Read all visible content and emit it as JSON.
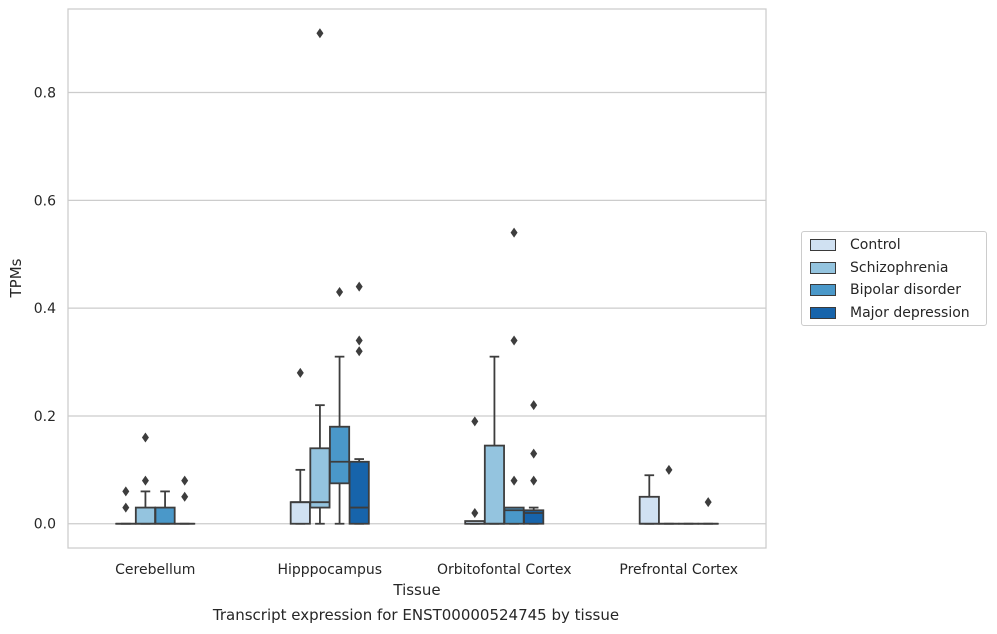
{
  "chart_data": {
    "type": "box",
    "xlabel": "Tissue",
    "ylabel": "TPMs",
    "caption": "Transcript expression for ENST00000524745 by tissue",
    "ylim": [
      -0.045,
      0.955
    ],
    "yticks": [
      0.0,
      0.2,
      0.4,
      0.6,
      0.8
    ],
    "ytick_labels": [
      "0.0",
      "0.2",
      "0.4",
      "0.6",
      "0.8"
    ],
    "grid": "horizontal",
    "legend_position": "right, outside",
    "categories": [
      "Cerebellum",
      "Hipppocampus",
      "Orbitofontal Cortex",
      "Prefrontal Cortex"
    ],
    "series": [
      {
        "name": "Control",
        "color": "#d0e1f2",
        "boxes": [
          {
            "q1": 0,
            "median": 0,
            "q3": 0,
            "whisker_low": 0,
            "whisker_high": 0,
            "outliers": [
              0.03,
              0.06
            ]
          },
          {
            "q1": 0,
            "median": 0.04,
            "q3": 0.04,
            "whisker_low": 0,
            "whisker_high": 0.1,
            "outliers": [
              0.28
            ]
          },
          {
            "q1": 0,
            "median": 0,
            "q3": 0.005,
            "whisker_low": 0,
            "whisker_high": 0.005,
            "outliers": [
              0.02,
              0.19
            ]
          },
          {
            "q1": 0,
            "median": 0,
            "q3": 0.05,
            "whisker_low": 0,
            "whisker_high": 0.09,
            "outliers": []
          }
        ]
      },
      {
        "name": "Schizophrenia",
        "color": "#94c4df",
        "boxes": [
          {
            "q1": 0,
            "median": 0,
            "q3": 0.03,
            "whisker_low": 0,
            "whisker_high": 0.06,
            "outliers": [
              0.08,
              0.16
            ]
          },
          {
            "q1": 0.03,
            "median": 0.04,
            "q3": 0.14,
            "whisker_low": 0,
            "whisker_high": 0.22,
            "outliers": [
              0.91
            ]
          },
          {
            "q1": 0,
            "median": 0,
            "q3": 0.145,
            "whisker_low": 0,
            "whisker_high": 0.31,
            "outliers": []
          },
          {
            "q1": 0,
            "median": 0,
            "q3": 0,
            "whisker_low": 0,
            "whisker_high": 0,
            "outliers": [
              0.1
            ]
          }
        ]
      },
      {
        "name": "Bipolar disorder",
        "color": "#4a98c9",
        "boxes": [
          {
            "q1": 0,
            "median": 0,
            "q3": 0.03,
            "whisker_low": 0,
            "whisker_high": 0.06,
            "outliers": []
          },
          {
            "q1": 0.075,
            "median": 0.115,
            "q3": 0.18,
            "whisker_low": 0,
            "whisker_high": 0.31,
            "outliers": [
              0.43
            ]
          },
          {
            "q1": 0,
            "median": 0.025,
            "q3": 0.03,
            "whisker_low": 0,
            "whisker_high": 0.03,
            "outliers": [
              0.08,
              0.34,
              0.54
            ]
          },
          {
            "q1": 0,
            "median": 0,
            "q3": 0,
            "whisker_low": 0,
            "whisker_high": 0,
            "outliers": []
          }
        ]
      },
      {
        "name": "Major depression",
        "color": "#1764ab",
        "boxes": [
          {
            "q1": 0,
            "median": 0,
            "q3": 0,
            "whisker_low": 0,
            "whisker_high": 0,
            "outliers": [
              0.05,
              0.08
            ]
          },
          {
            "q1": 0,
            "median": 0.03,
            "q3": 0.115,
            "whisker_low": 0,
            "whisker_high": 0.12,
            "outliers": [
              0.32,
              0.34,
              0.44
            ]
          },
          {
            "q1": 0,
            "median": 0.02,
            "q3": 0.025,
            "whisker_low": 0,
            "whisker_high": 0.03,
            "outliers": [
              0.08,
              0.13,
              0.22
            ]
          },
          {
            "q1": 0,
            "median": 0,
            "q3": 0,
            "whisker_low": 0,
            "whisker_high": 0,
            "outliers": [
              0.04
            ]
          }
        ]
      }
    ]
  }
}
